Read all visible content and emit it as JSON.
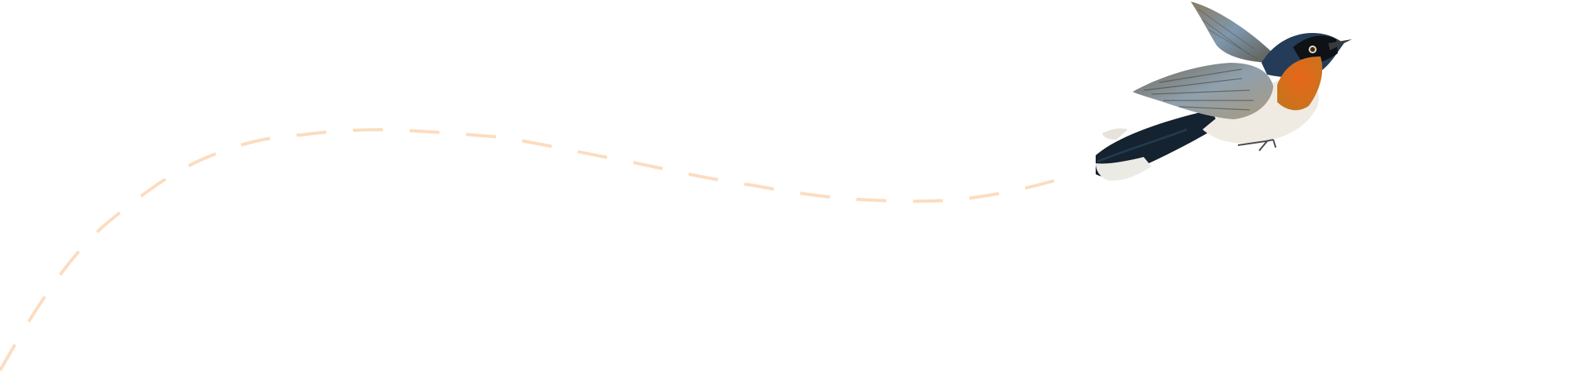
{
  "illustration": {
    "subject": "bird-in-flight",
    "colors": {
      "flight_path": "#fcdcc0",
      "head_back": "#1f3550",
      "throat": "#e0661a",
      "belly": "#efebe3",
      "wing": "#7d7a70",
      "tail": "#15222f"
    }
  }
}
